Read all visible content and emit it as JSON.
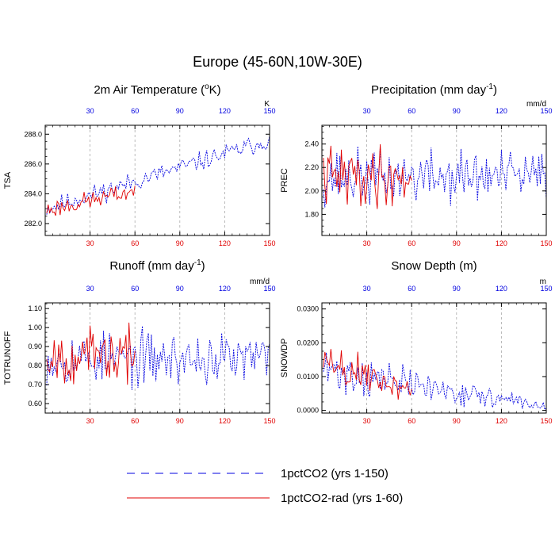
{
  "figure": {
    "title": "Europe (45-60N,10W-30E)",
    "legend": [
      {
        "label": "1pctCO2 (yrs 1-150)",
        "color": "#0000e0",
        "style": "dashed"
      },
      {
        "label": "1pctCO2-rad (yrs 1-60)",
        "color": "#e00000",
        "style": "solid"
      }
    ]
  },
  "chart_data": [
    {
      "type": "line",
      "title": "2m Air Temperature (",
      "title_sup": "o",
      "title_rest": "K)",
      "title_sup_mode": "mid",
      "ylabel": "TSA",
      "unit": "K",
      "xlim": [
        0,
        150
      ],
      "ylim": [
        281.2,
        288.6
      ],
      "yticks": [
        282.0,
        284.0,
        286.0,
        288.0
      ],
      "ytick_labels": [
        "282.0",
        "284.0",
        "286.0",
        "288.0"
      ],
      "xticks": [
        30,
        60,
        90,
        120,
        150
      ],
      "xtick_labels": [
        "30",
        "60",
        "90",
        "120",
        "150"
      ],
      "grid_x": [
        30,
        60,
        90,
        120
      ],
      "series": [
        {
          "name": "1pctCO2 (yrs 1-150)",
          "color": "#0000e0",
          "style": "dashed",
          "trend": [
            283.0,
            287.6
          ],
          "amplitude": 0.55,
          "n": 150,
          "seed": 11
        },
        {
          "name": "1pctCO2-rad (yrs 1-60)",
          "color": "#e00000",
          "style": "solid",
          "trend": [
            282.9,
            284.2
          ],
          "amplitude": 0.55,
          "n": 60,
          "seed": 23
        }
      ]
    },
    {
      "type": "line",
      "title": "Precipitation (mm day",
      "title_sup": "-1",
      "title_rest": ")",
      "title_sup_mode": "end",
      "ylabel": "PREC",
      "unit": "mm/d",
      "xlim": [
        0,
        150
      ],
      "ylim": [
        1.62,
        2.56
      ],
      "yticks": [
        1.8,
        2.0,
        2.2,
        2.4
      ],
      "ytick_labels": [
        "1.80",
        "2.00",
        "2.20",
        "2.40"
      ],
      "xticks": [
        30,
        60,
        90,
        120,
        150
      ],
      "xtick_labels": [
        "30",
        "60",
        "90",
        "120",
        "150"
      ],
      "grid_x": [
        30,
        60,
        90,
        120
      ],
      "series": [
        {
          "name": "1pctCO2 (yrs 1-150)",
          "color": "#0000e0",
          "style": "dashed",
          "trend": [
            2.12,
            2.12
          ],
          "amplitude": 0.2,
          "n": 150,
          "seed": 37
        },
        {
          "name": "1pctCO2-rad (yrs 1-60)",
          "color": "#e00000",
          "style": "solid",
          "trend": [
            2.12,
            2.12
          ],
          "amplitude": 0.22,
          "n": 60,
          "seed": 41
        }
      ]
    },
    {
      "type": "line",
      "title": "Runoff (mm day",
      "title_sup": "-1",
      "title_rest": ")",
      "title_sup_mode": "end",
      "ylabel": "TOTRUNOFF",
      "unit": "mm/d",
      "xlim": [
        0,
        150
      ],
      "ylim": [
        0.55,
        1.13
      ],
      "yticks": [
        0.6,
        0.7,
        0.8,
        0.9,
        1.0,
        1.1
      ],
      "ytick_labels": [
        "0.60",
        "0.70",
        "0.80",
        "0.90",
        "1.00",
        "1.10"
      ],
      "xticks": [
        30,
        60,
        90,
        120,
        150
      ],
      "xtick_labels": [
        "30",
        "60",
        "90",
        "120",
        "150"
      ],
      "grid_x": [
        30,
        60,
        90,
        120
      ],
      "series": [
        {
          "name": "1pctCO2 (yrs 1-150)",
          "color": "#0000e0",
          "style": "dashed",
          "trend": [
            0.84,
            0.83
          ],
          "amplitude": 0.12,
          "n": 150,
          "seed": 53
        },
        {
          "name": "1pctCO2-rad (yrs 1-60)",
          "color": "#e00000",
          "style": "solid",
          "trend": [
            0.86,
            0.84
          ],
          "amplitude": 0.12,
          "n": 60,
          "seed": 67
        }
      ]
    },
    {
      "type": "line",
      "title": "Snow Depth (m)",
      "title_sup": "",
      "title_rest": "",
      "title_sup_mode": "none",
      "ylabel": "SNOWDP",
      "unit": "m",
      "xlim": [
        0,
        150
      ],
      "ylim": [
        -0.0008,
        0.0318
      ],
      "yticks": [
        0.0,
        0.01,
        0.02,
        0.03
      ],
      "ytick_labels": [
        "0.0000",
        "0.0100",
        "0.0200",
        "0.0300"
      ],
      "xticks": [
        30,
        60,
        90,
        120,
        150
      ],
      "xtick_labels": [
        "30",
        "60",
        "90",
        "120",
        "150"
      ],
      "grid_x": [
        30,
        60,
        90,
        120
      ],
      "series": [
        {
          "name": "1pctCO2 (yrs 1-150)",
          "color": "#0000e0",
          "style": "dashed",
          "trend": [
            0.012,
            0.001
          ],
          "amplitude": 0.006,
          "decay": true,
          "n": 150,
          "seed": 71
        },
        {
          "name": "1pctCO2-rad (yrs 1-60)",
          "color": "#e00000",
          "style": "solid",
          "trend": [
            0.014,
            0.006
          ],
          "amplitude": 0.009,
          "decay": true,
          "n": 60,
          "seed": 89
        }
      ]
    }
  ]
}
